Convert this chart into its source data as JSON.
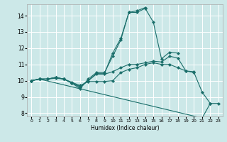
{
  "xlabel": "Humidex (Indice chaleur)",
  "xlim": [
    -0.5,
    23.5
  ],
  "ylim": [
    7.8,
    14.7
  ],
  "yticks": [
    8,
    9,
    10,
    11,
    12,
    13,
    14
  ],
  "xticks": [
    0,
    1,
    2,
    3,
    4,
    5,
    6,
    7,
    8,
    9,
    10,
    11,
    12,
    13,
    14,
    15,
    16,
    17,
    18,
    19,
    20,
    21,
    22,
    23
  ],
  "bg_color": "#cce8e8",
  "grid_color": "#ffffff",
  "line_color": "#1a6e6a",
  "series": [
    {
      "x": [
        0,
        1,
        2,
        3,
        4,
        5,
        6,
        7,
        8,
        9,
        10,
        11,
        12,
        13,
        14,
        15,
        16,
        17,
        18,
        19,
        20,
        21,
        22,
        23
      ],
      "y": [
        10.0,
        10.1,
        10.1,
        10.15,
        10.1,
        9.9,
        9.7,
        9.95,
        9.95,
        9.95,
        10.0,
        10.5,
        10.7,
        10.8,
        11.0,
        11.1,
        11.0,
        11.0,
        10.8,
        10.6,
        10.5,
        9.3,
        8.6,
        8.6
      ]
    },
    {
      "x": [
        0,
        1,
        2,
        3,
        4,
        5,
        6,
        7,
        8,
        9,
        10,
        11,
        12,
        13,
        14,
        15,
        16,
        17,
        18,
        19,
        20
      ],
      "y": [
        10.0,
        10.1,
        10.1,
        10.2,
        10.1,
        9.85,
        9.6,
        10.0,
        10.4,
        10.4,
        10.55,
        10.8,
        11.0,
        11.0,
        11.1,
        11.2,
        11.15,
        11.5,
        11.4,
        10.6,
        10.55
      ]
    },
    {
      "x": [
        0,
        1,
        2,
        3,
        4,
        5,
        6,
        7,
        8,
        9,
        10,
        11,
        12,
        13,
        14,
        15,
        16,
        17,
        18
      ],
      "y": [
        10.0,
        10.1,
        10.1,
        10.2,
        10.1,
        9.85,
        9.65,
        10.0,
        10.45,
        10.45,
        11.7,
        12.6,
        14.2,
        14.2,
        14.45,
        13.6,
        11.35,
        11.75,
        11.7
      ]
    },
    {
      "x": [
        0,
        1,
        2,
        3,
        4,
        5,
        6,
        7,
        8,
        9,
        10,
        11,
        12,
        13,
        14
      ],
      "y": [
        10.0,
        10.1,
        10.1,
        10.2,
        10.1,
        9.85,
        9.5,
        10.1,
        10.5,
        10.5,
        11.5,
        12.5,
        14.2,
        14.3,
        14.5
      ]
    },
    {
      "x": [
        0,
        1,
        21,
        22
      ],
      "y": [
        10.0,
        10.1,
        7.7,
        8.6
      ]
    }
  ]
}
